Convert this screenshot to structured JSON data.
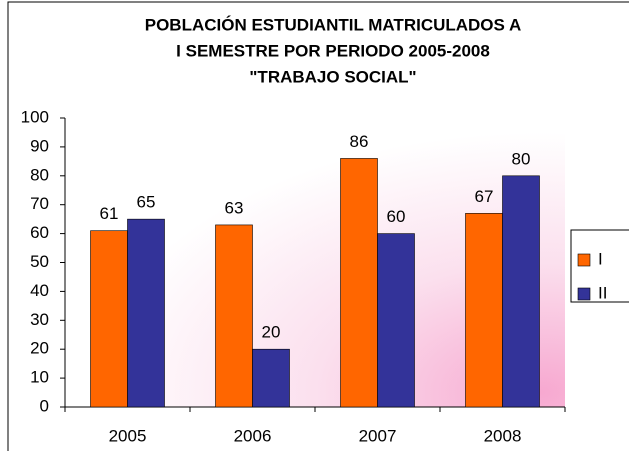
{
  "chart_data": {
    "type": "bar",
    "title": [
      "POBLACIÓN ESTUDIANTIL  MATRICULADOS A",
      "I SEMESTRE  POR PERIODO 2005-2008",
      "\"TRABAJO SOCIAL\""
    ],
    "categories": [
      "2005",
      "2006",
      "2007",
      "2008"
    ],
    "series": [
      {
        "name": "I",
        "color": "#ff6600",
        "values": [
          61,
          63,
          86,
          67
        ]
      },
      {
        "name": "II",
        "color": "#333399",
        "values": [
          65,
          20,
          60,
          80
        ]
      }
    ],
    "ylim": [
      0,
      100
    ],
    "yticks": [
      0,
      10,
      20,
      30,
      40,
      50,
      60,
      70,
      80,
      90,
      100
    ],
    "grid": false,
    "legend": "right"
  }
}
